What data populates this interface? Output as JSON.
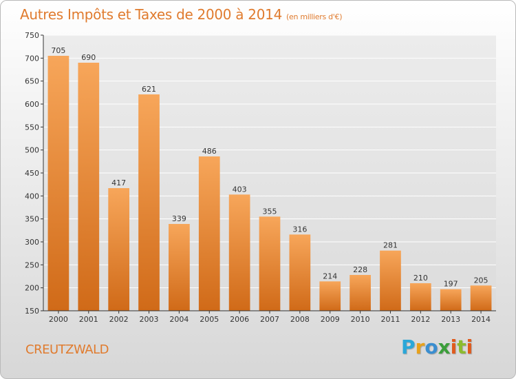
{
  "header": {
    "title": "Autres Impôts et Taxes de 2000 à 2014",
    "subtitle": "(en milliers d'€)"
  },
  "footer": {
    "commune": "CREUTZWALD",
    "brand": [
      "P",
      "r",
      "o",
      "x",
      "i",
      "t",
      "i"
    ]
  },
  "colors": {
    "title": "#e07b2e",
    "bar_top": "#f7a65a",
    "bar_bottom": "#d06a18",
    "axis": "#333333",
    "grid": "#ffffff"
  },
  "chart_data": {
    "type": "bar",
    "title": "Autres Impôts et Taxes de 2000 à 2014",
    "subtitle": "(en milliers d'€)",
    "categories": [
      "2000",
      "2001",
      "2002",
      "2003",
      "2004",
      "2005",
      "2006",
      "2007",
      "2008",
      "2009",
      "2010",
      "2011",
      "2012",
      "2013",
      "2014"
    ],
    "values": [
      705,
      690,
      417,
      621,
      339,
      486,
      403,
      355,
      316,
      214,
      228,
      281,
      210,
      197,
      205
    ],
    "ylim": [
      150,
      750
    ],
    "yticks": [
      150,
      200,
      250,
      300,
      350,
      400,
      450,
      500,
      550,
      600,
      650,
      700,
      750
    ],
    "grid": true,
    "data_labels": true
  }
}
